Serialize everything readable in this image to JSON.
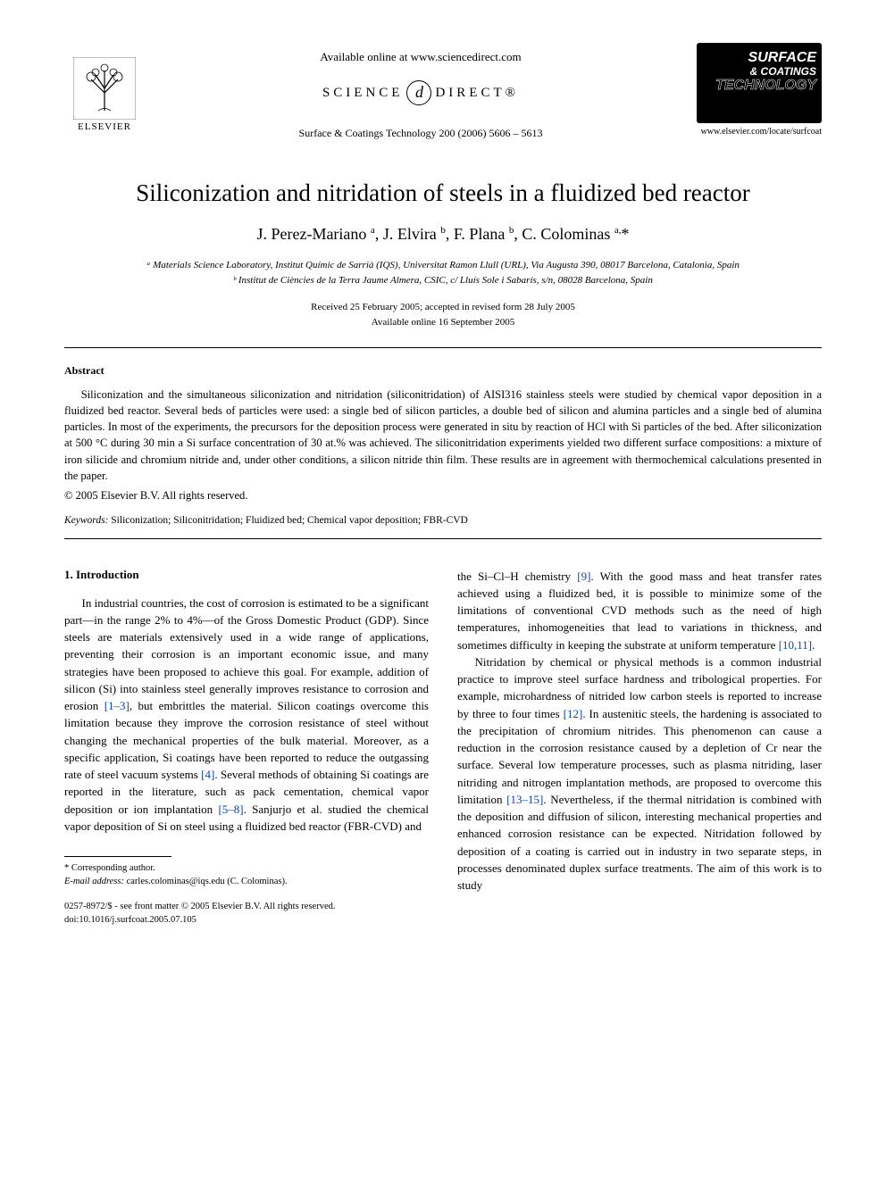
{
  "header": {
    "available_online": "Available online at www.sciencedirect.com",
    "sciencedirect_pre": "SCIENCE",
    "sciencedirect_post": "DIRECT®",
    "journal_ref": "Surface & Coatings Technology 200 (2006) 5606 – 5613",
    "elsevier_label": "ELSEVIER",
    "journal_logo_lines": [
      "SURFACE",
      "& COATINGS",
      "TECHNOLOGY"
    ],
    "journal_url": "www.elsevier.com/locate/surfcoat"
  },
  "article": {
    "title": "Siliconization and nitridation of steels in a fluidized bed reactor",
    "authors_html": "J. Perez-Mariano <sup>a</sup>, J. Elvira <sup>b</sup>, F. Plana <sup>b</sup>, C. Colominas <sup>a,</sup>*",
    "affiliations": [
      "ᵃ Materials Science Laboratory, Institut Químic de Sarrià (IQS), Universitat Ramon Llull (URL), Via Augusta 390, 08017 Barcelona, Catalonia, Spain",
      "ᵇ Institut de Ciències de la Terra Jaume Almera, CSIC, c/ Lluís Sole i Sabarís, s/n, 08028 Barcelona, Spain"
    ],
    "received_line": "Received 25 February 2005; accepted in revised form 28 July 2005",
    "online_line": "Available online 16 September 2005"
  },
  "abstract": {
    "heading": "Abstract",
    "body": "Siliconization and the simultaneous siliconization and nitridation (siliconitridation) of AISI316 stainless steels were studied by chemical vapor deposition in a fluidized bed reactor. Several beds of particles were used: a single bed of silicon particles, a double bed of silicon and alumina particles and a single bed of alumina particles. In most of the experiments, the precursors for the deposition process were generated in situ by reaction of HCl with Si particles of the bed. After siliconization at 500 °C during 30 min a Si surface concentration of 30 at.% was achieved. The siliconitridation experiments yielded two different surface compositions: a mixture of iron silicide and chromium nitride and, under other conditions, a silicon nitride thin film. These results are in agreement with thermochemical calculations presented in the paper.",
    "copyright": "© 2005 Elsevier B.V. All rights reserved.",
    "keywords_label": "Keywords:",
    "keywords": " Siliconization; Siliconitridation; Fluidized bed; Chemical vapor deposition; FBR-CVD"
  },
  "section1": {
    "heading": "1. Introduction",
    "col1_pre": "In industrial countries, the cost of corrosion is estimated to be a significant part—in the range 2% to 4%—of the Gross Domestic Product (GDP). Since steels are materials extensively used in a wide range of applications, preventing their corrosion is an important economic issue, and many strategies have been proposed to achieve this goal. For example, addition of silicon (Si) into stainless steel generally improves resistance to corrosion and erosion ",
    "ref1": "[1–3]",
    "col1_mid1": ", but embrittles the material. Silicon coatings overcome this limitation because they improve the corrosion resistance of steel without changing the mechanical properties of the bulk material. Moreover, as a specific application, Si coatings have been reported to reduce the outgassing rate of steel vacuum systems ",
    "ref2": "[4]",
    "col1_mid2": ". Several methods of obtaining Si coatings are reported in the literature, such as pack cementation, chemical vapor deposition or ion implantation ",
    "ref3": "[5–8]",
    "col1_post": ". Sanjurjo et al. studied the chemical vapor deposition of Si on steel using a fluidized bed reactor (FBR-CVD) and",
    "col2_pre": "the Si–Cl–H chemistry ",
    "ref4": "[9]",
    "col2_mid1": ". With the good mass and heat transfer rates achieved using a fluidized bed, it is possible to minimize some of the limitations of conventional CVD methods such as the need of high temperatures, inhomogeneities that lead to variations in thickness, and sometimes difficulty in keeping the substrate at uniform temperature ",
    "ref5": "[10,11]",
    "col2_mid2": ".",
    "col2_p2_pre": "Nitridation by chemical or physical methods is a common industrial practice to improve steel surface hardness and tribological properties. For example, microhardness of nitrided low carbon steels is reported to increase by three to four times ",
    "ref6": "[12]",
    "col2_p2_mid": ". In austenitic steels, the hardening is associated to the precipitation of chromium nitrides. This phenomenon can cause a reduction in the corrosion resistance caused by a depletion of Cr near the surface. Several low temperature processes, such as plasma nitriding, laser nitriding and nitrogen implantation methods, are proposed to overcome this limitation ",
    "ref7": "[13–15]",
    "col2_p2_post": ". Nevertheless, if the thermal nitridation is combined with the deposition and diffusion of silicon, interesting mechanical properties and enhanced corrosion resistance can be expected. Nitridation followed by deposition of a coating is carried out in industry in two separate steps, in processes denominated duplex surface treatments. The aim of this work is to study"
  },
  "footnote": {
    "corresponding": "* Corresponding author.",
    "email_label": "E-mail address:",
    "email": " carles.colominas@iqs.edu (C. Colominas)."
  },
  "footer": {
    "line1": "0257-8972/$ - see front matter © 2005 Elsevier B.V. All rights reserved.",
    "line2": "doi:10.1016/j.surfcoat.2005.07.105"
  },
  "colors": {
    "link": "#0645ad",
    "text": "#000000",
    "background": "#ffffff",
    "logo_bg": "#000000",
    "logo_fg": "#ffffff"
  }
}
